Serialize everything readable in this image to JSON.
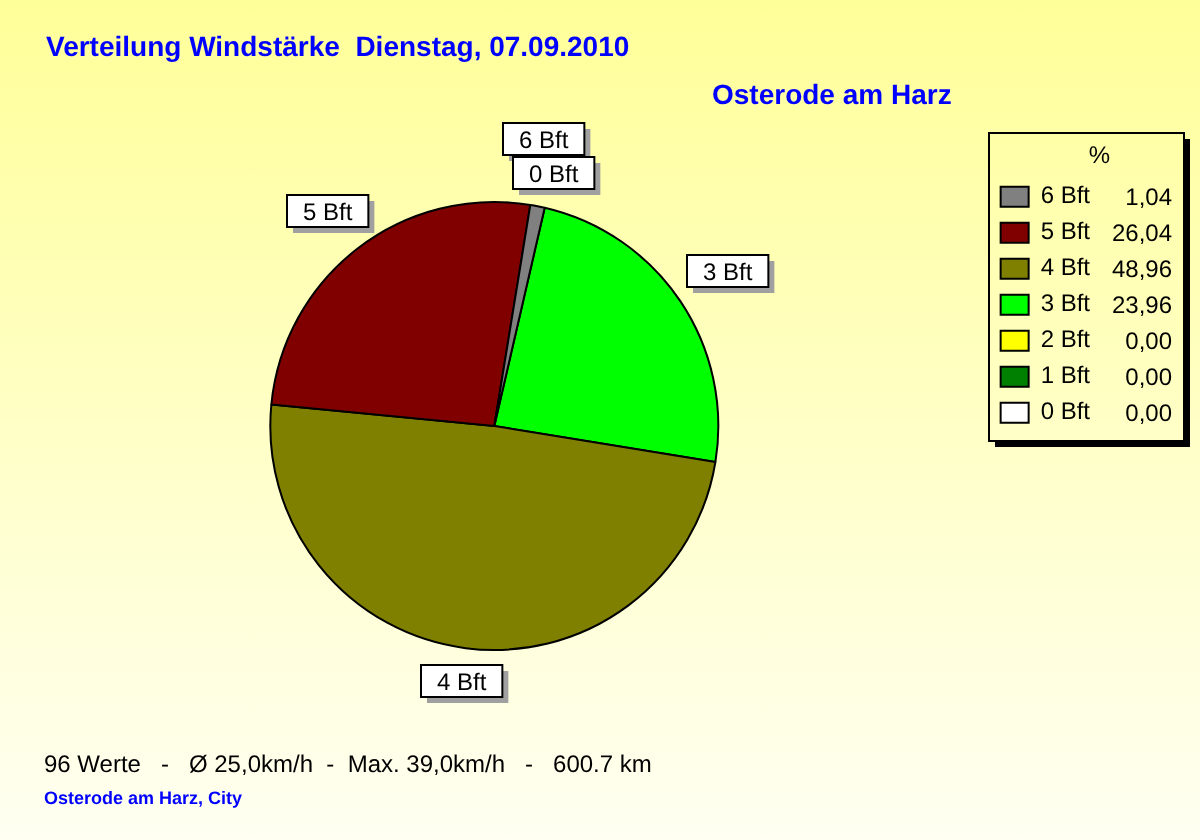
{
  "chart_data": {
    "type": "pie",
    "title": "Verteilung Windstärke  Dienstag, 07.09.2010",
    "subtitle": "Osterode am Harz",
    "categories": [
      "6 Bft",
      "5 Bft",
      "4 Bft",
      "3 Bft",
      "2 Bft",
      "1 Bft",
      "0 Bft"
    ],
    "values": [
      1.04,
      26.04,
      48.96,
      23.96,
      0,
      0,
      0
    ],
    "colors": [
      "#808080",
      "#800000",
      "#808000",
      "#00ff00",
      "#ffff00",
      "#008000",
      "#ffffff"
    ],
    "value_labels": [
      "1,04",
      "26,04",
      "48,96",
      "23,96",
      "0,00",
      "0,00",
      "0,00"
    ],
    "legend": "top right",
    "legend_title": "%",
    "annotations": [
      "96 Werte   -   Ø 25,0km/h  -  Max. 39,0km/h   -   600.7 km",
      "Osterode am Harz, City"
    ]
  }
}
